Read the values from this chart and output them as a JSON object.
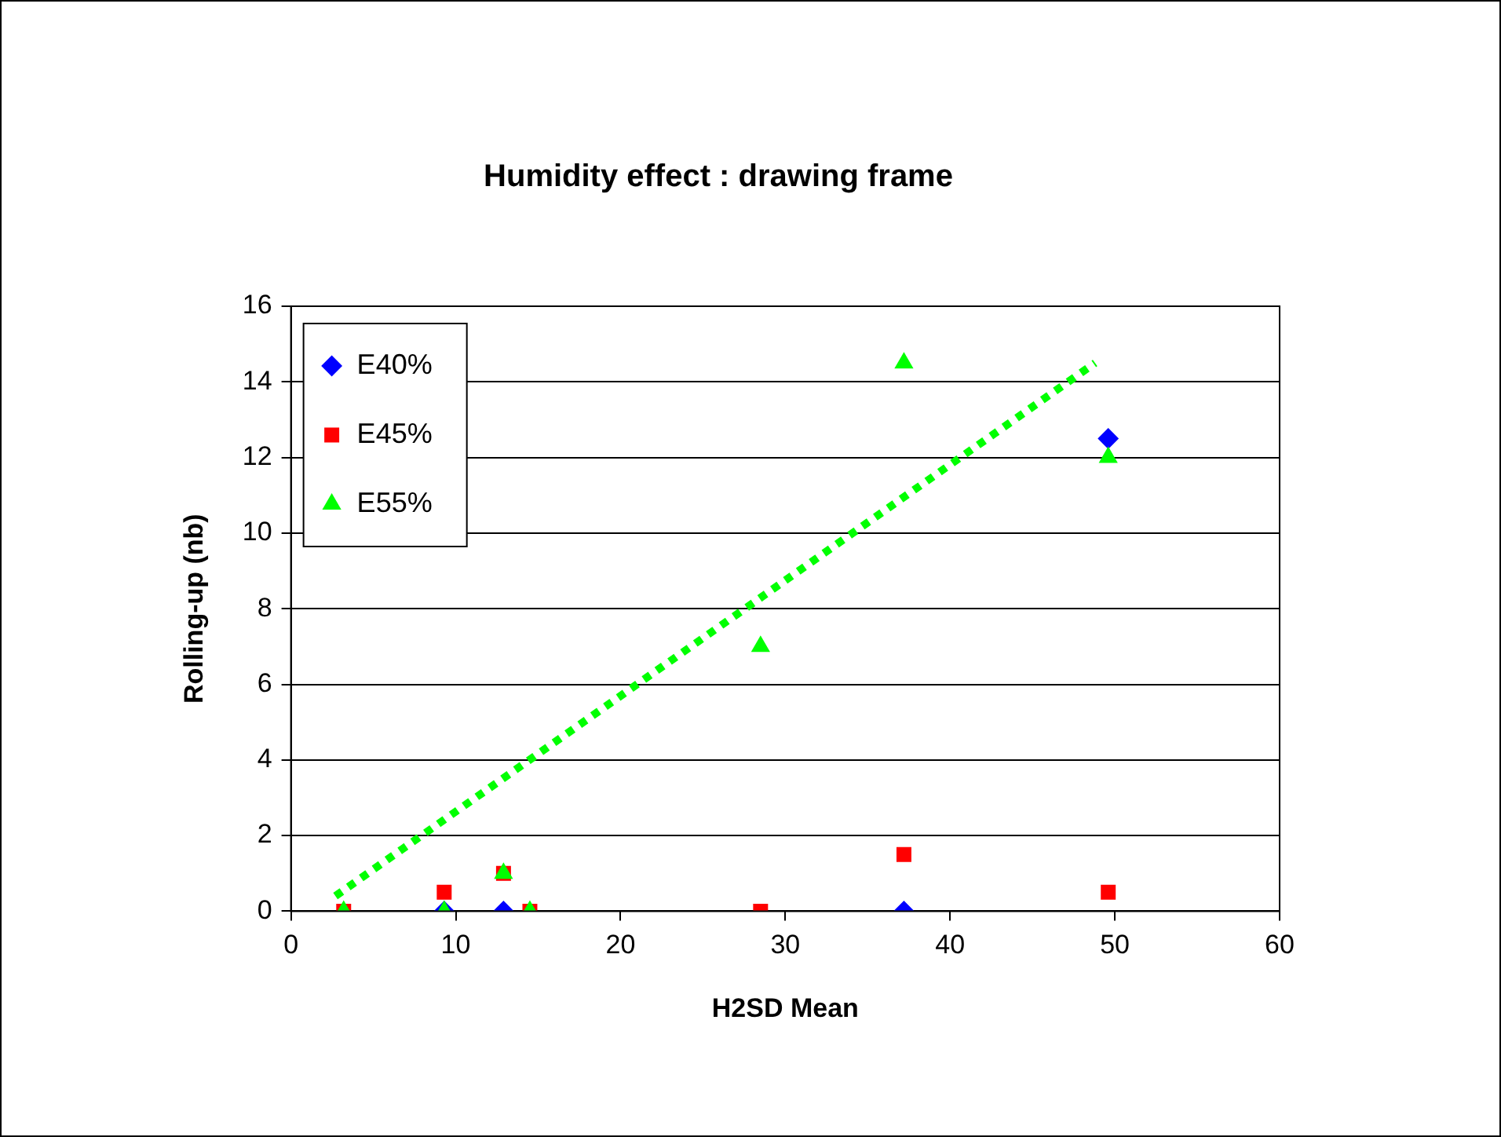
{
  "chart_data": {
    "type": "scatter",
    "title": "Humidity effect : drawing frame",
    "xlabel": "H2SD Mean",
    "ylabel": "Rolling-up (nb)",
    "xlim": [
      0,
      60
    ],
    "xticks": [
      0,
      10,
      20,
      30,
      40,
      50,
      60
    ],
    "ylim": [
      0,
      16
    ],
    "yticks": [
      0,
      2,
      4,
      6,
      8,
      10,
      12,
      14,
      16
    ],
    "grid": "y",
    "legend": "top left",
    "series": [
      {
        "name": "E40%",
        "color": "#0000ff",
        "marker": "diamond",
        "x": [
          9.3,
          12.9,
          37.2,
          49.6
        ],
        "values": [
          0,
          0,
          0,
          12.5
        ]
      },
      {
        "name": "E45%",
        "color": "#ff0000",
        "marker": "square",
        "x": [
          3.2,
          9.3,
          12.9,
          14.5,
          28.5,
          37.2,
          49.6
        ],
        "values": [
          0,
          0.5,
          1,
          0,
          0,
          1.5,
          0.5
        ]
      },
      {
        "name": "E55%",
        "color": "#00ff00",
        "marker": "triangle",
        "x": [
          3.2,
          9.3,
          12.9,
          14.5,
          28.5,
          37.2,
          49.6
        ],
        "values": [
          0,
          0,
          1,
          0,
          7,
          14.5,
          12
        ]
      },
      {
        "type": "line",
        "color": "#00ff00",
        "line_style": "dotted",
        "marker": "none",
        "x": [
          2.7,
          48.8
        ],
        "values": [
          0.4,
          14.5
        ]
      }
    ]
  }
}
